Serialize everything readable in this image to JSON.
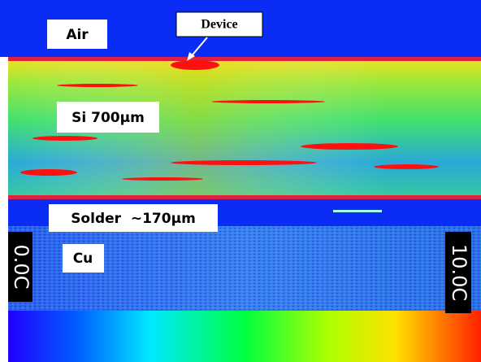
{
  "labels": {
    "air": "Air",
    "device": "Device",
    "silicon": "Si 700µm",
    "solder": "Solder  ~170µm",
    "copper": "Cu"
  },
  "scale": {
    "min": "0.0C",
    "max": "10.0C"
  }
}
